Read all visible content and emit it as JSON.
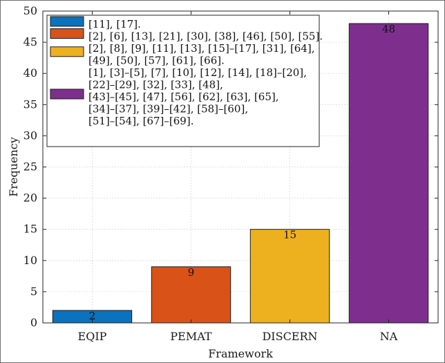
{
  "chart_data": {
    "type": "bar",
    "categories": [
      "EQIP",
      "PEMAT",
      "DISCERN",
      "NA"
    ],
    "values": [
      2,
      9,
      15,
      48
    ],
    "data_labels": [
      "2",
      "9",
      "15",
      "48"
    ],
    "colors": [
      "#0b72bd",
      "#d95319",
      "#edb120",
      "#7e2f8e"
    ],
    "ylim": [
      0,
      50
    ],
    "y_ticks": [
      0,
      5,
      10,
      15,
      20,
      25,
      30,
      35,
      40,
      45,
      50
    ],
    "xlabel": "Framework",
    "ylabel": "Frequency",
    "grid": true,
    "legend_position": "top-left",
    "legend": [
      {
        "color": "#0b72bd",
        "lines": [
          "[11], [17]."
        ]
      },
      {
        "color": "#d95319",
        "lines": [
          "[2], [6], [13], [21], [30], [38], [46], [50], [55]."
        ]
      },
      {
        "color": "#edb120",
        "lines": [
          "[2], [8], [9], [11], [13], [15]–[17], [31], [64],",
          "[49], [50], [57], [61], [66]."
        ]
      },
      {
        "color": "#7e2f8e",
        "lines": [
          "[1], [3]–[5], [7], [10], [12], [14], [18]–[20],",
          "[22]–[29], [32], [33], [48],",
          "[43]–[45], [47], [56], [62], [63], [65],",
          "[34]–[37], [39]–[42], [58]–[60],",
          "[51]–[54], [67]–[69]."
        ]
      }
    ]
  }
}
